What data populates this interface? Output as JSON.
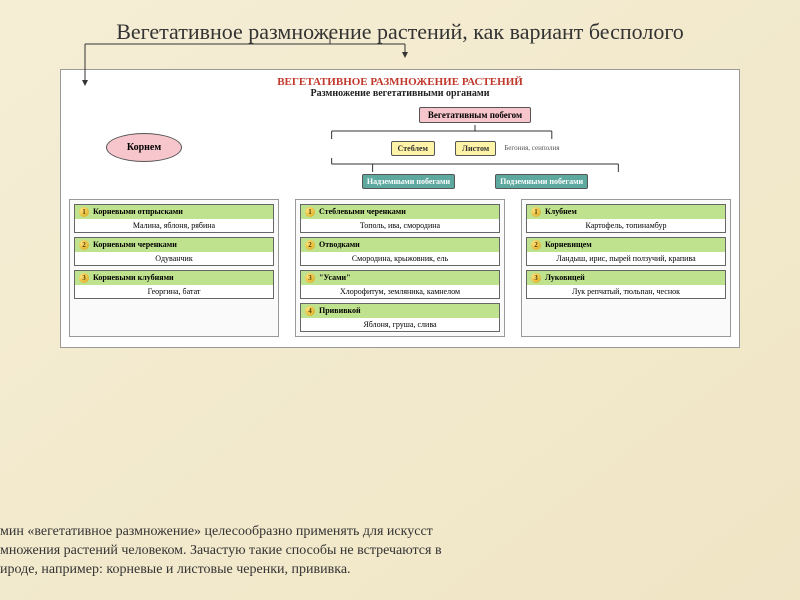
{
  "title": "Вегетативное размножение растений, как вариант бесполого",
  "diagram": {
    "main_title": "ВЕГЕТАТИВНОЕ РАЗМНОЖЕНИЕ РАСТЕНИЙ",
    "sub_title": "Размножение вегетативными органами",
    "top_node": "Вегетативным побегом",
    "root_node": "Корнем",
    "stem_node": "Стеблем",
    "leaf_node": "Листом",
    "leaf_examples": "Бегония, сенполия",
    "above_node": "Надземными побегами",
    "below_node": "Подземными побегами",
    "col1": [
      {
        "n": "1",
        "head": "Корневыми отпрысками",
        "body": "Малина, яблоня, рябина"
      },
      {
        "n": "2",
        "head": "Корневыми черенками",
        "body": "Одуванчик"
      },
      {
        "n": "3",
        "head": "Корневыми клубнями",
        "body": "Георгина, батат"
      }
    ],
    "col2": [
      {
        "n": "1",
        "head": "Стеблевыми черенками",
        "body": "Тополь, ива, смородина"
      },
      {
        "n": "2",
        "head": "Отводками",
        "body": "Смородина, крыжовник, ель"
      },
      {
        "n": "3",
        "head": "\"Усами\"",
        "body": "Хлорофитум, земляника, камнелом"
      },
      {
        "n": "4",
        "head": "Прививкой",
        "body": "Яблоня, груша, слива"
      }
    ],
    "col3": [
      {
        "n": "1",
        "head": "Клубнем",
        "body": "Картофель, топинамбур"
      },
      {
        "n": "2",
        "head": "Корневищем",
        "body": "Ландыш, ирис, пырей ползучий, крапива"
      },
      {
        "n": "3",
        "head": "Луковицей",
        "body": "Лук репчатый, тюльпан, чеснок"
      }
    ]
  },
  "footer_l1": "мин «вегетативное размножение» целесообразно применять для искусст",
  "footer_l2": "множения растений человеком. Зачастую такие способы не встречаются в",
  "footer_l3": "ироде, например: корневые и листовые черенки, прививка.",
  "colors": {
    "bg_grad_from": "#f5eed5",
    "bg_grad_to": "#f0e5c5",
    "title_red": "#c0392b",
    "node_pink": "#f7c6cc",
    "node_teal": "#5da89f",
    "node_yellow": "#fff3a8",
    "head_green": "#bfe28f"
  }
}
